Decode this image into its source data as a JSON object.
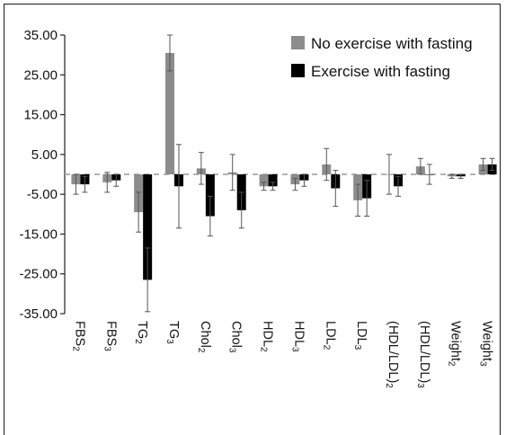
{
  "chart_data": {
    "type": "bar",
    "title": "",
    "xlabel": "",
    "ylabel": "",
    "ylim": [
      -35,
      35
    ],
    "yticks": [
      "35.00",
      "25.00",
      "15.00",
      "5.00",
      "-5.00",
      "-15.00",
      "-25.00",
      "-35.00"
    ],
    "ytick_values": [
      35,
      25,
      15,
      5,
      -5,
      -15,
      -25,
      -35
    ],
    "grid": false,
    "legend_position": "top-right",
    "categories": [
      {
        "base": "FBS",
        "sub": "2"
      },
      {
        "base": "FBS",
        "sub": "3"
      },
      {
        "base": "TG",
        "sub": "2"
      },
      {
        "base": "TG",
        "sub": "3"
      },
      {
        "base": "Chol",
        "sub": "2"
      },
      {
        "base": "Chol",
        "sub": "3"
      },
      {
        "base": "HDL",
        "sub": "2"
      },
      {
        "base": "HDL",
        "sub": "3"
      },
      {
        "base": "LDL",
        "sub": "2"
      },
      {
        "base": "LDL",
        "sub": "3"
      },
      {
        "base": "(HDL/LDL)",
        "sub": "2"
      },
      {
        "base": "(HDL/LDL)",
        "sub": "3"
      },
      {
        "base": "Weight",
        "sub": "2"
      },
      {
        "base": "Weight",
        "sub": "3"
      }
    ],
    "series": [
      {
        "name": "No exercise with fasting",
        "color": "#8c8c8c",
        "values": [
          -2.5,
          -2.0,
          -9.5,
          30.5,
          1.5,
          0.5,
          -3.0,
          -2.5,
          2.5,
          -6.5,
          0,
          2.0,
          -0.5,
          2.5
        ],
        "errors": [
          2.5,
          2.5,
          5.0,
          4.5,
          4.0,
          4.5,
          1.0,
          1.5,
          4.0,
          4.0,
          5.0,
          2.0,
          0.5,
          1.5
        ]
      },
      {
        "name": "Exercise with fasting",
        "color": "#000000",
        "values": [
          -2.5,
          -1.5,
          -26.5,
          -3.0,
          -10.5,
          -9.0,
          -3.0,
          -1.5,
          -3.5,
          -6.0,
          -3.0,
          0,
          -0.5,
          2.5
        ],
        "errors": [
          2.0,
          1.5,
          8.0,
          10.5,
          5.0,
          4.5,
          1.0,
          1.5,
          4.5,
          4.5,
          2.5,
          2.5,
          0.5,
          1.5
        ]
      }
    ]
  }
}
